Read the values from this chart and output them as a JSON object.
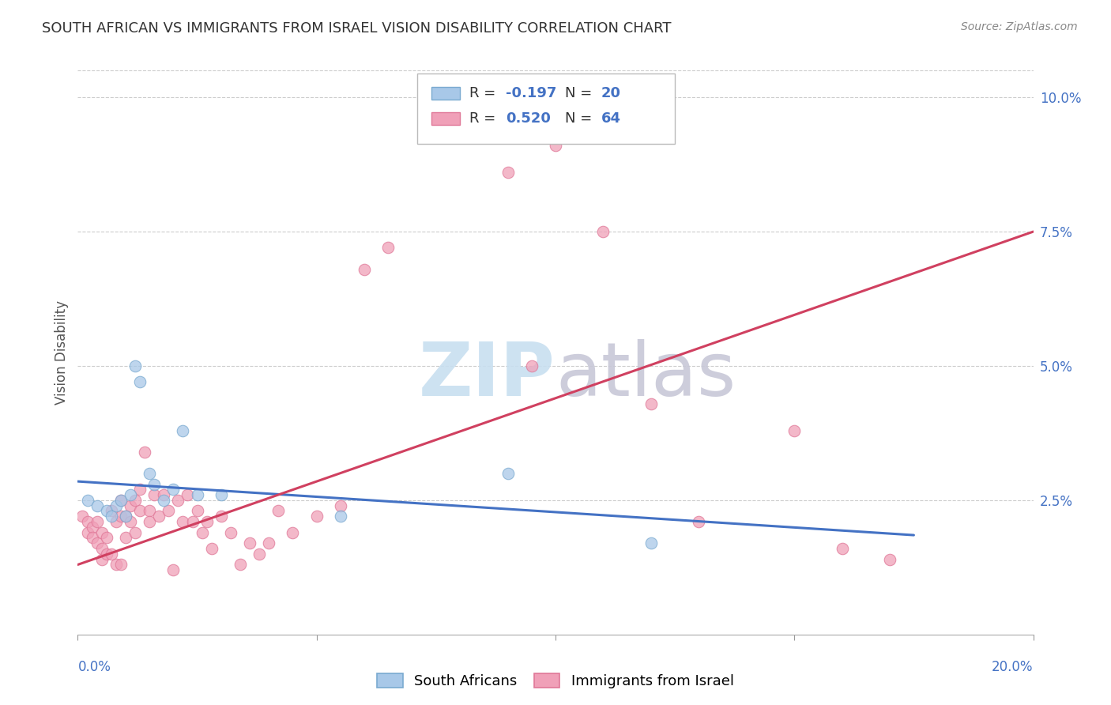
{
  "title": "SOUTH AFRICAN VS IMMIGRANTS FROM ISRAEL VISION DISABILITY CORRELATION CHART",
  "source": "Source: ZipAtlas.com",
  "ylabel": "Vision Disability",
  "xlim": [
    0.0,
    0.2
  ],
  "ylim": [
    0.0,
    0.105
  ],
  "yticks": [
    0.025,
    0.05,
    0.075,
    0.1
  ],
  "ytick_labels": [
    "2.5%",
    "5.0%",
    "7.5%",
    "10.0%"
  ],
  "xticks": [
    0.0,
    0.05,
    0.1,
    0.15,
    0.2
  ],
  "background_color": "#ffffff",
  "grid_color": "#cccccc",
  "blue_color": "#a8c8e8",
  "pink_color": "#f0a0b8",
  "blue_edge_color": "#7aaad0",
  "pink_edge_color": "#e07898",
  "blue_line_color": "#4472c4",
  "pink_line_color": "#d04060",
  "legend_r_blue": "-0.197",
  "legend_n_blue": "20",
  "legend_r_pink": "0.520",
  "legend_n_pink": "64",
  "blue_scatter_x": [
    0.002,
    0.004,
    0.006,
    0.007,
    0.008,
    0.009,
    0.01,
    0.011,
    0.012,
    0.013,
    0.015,
    0.016,
    0.018,
    0.02,
    0.022,
    0.025,
    0.03,
    0.055,
    0.09,
    0.12
  ],
  "blue_scatter_y": [
    0.025,
    0.024,
    0.023,
    0.022,
    0.024,
    0.025,
    0.022,
    0.026,
    0.05,
    0.047,
    0.03,
    0.028,
    0.025,
    0.027,
    0.038,
    0.026,
    0.026,
    0.022,
    0.03,
    0.017
  ],
  "pink_scatter_x": [
    0.001,
    0.002,
    0.002,
    0.003,
    0.003,
    0.004,
    0.004,
    0.005,
    0.005,
    0.005,
    0.006,
    0.006,
    0.007,
    0.007,
    0.008,
    0.008,
    0.009,
    0.009,
    0.009,
    0.01,
    0.01,
    0.011,
    0.011,
    0.012,
    0.012,
    0.013,
    0.013,
    0.014,
    0.015,
    0.015,
    0.016,
    0.017,
    0.018,
    0.019,
    0.02,
    0.021,
    0.022,
    0.023,
    0.024,
    0.025,
    0.026,
    0.027,
    0.028,
    0.03,
    0.032,
    0.034,
    0.036,
    0.038,
    0.04,
    0.042,
    0.045,
    0.05,
    0.055,
    0.06,
    0.065,
    0.09,
    0.095,
    0.1,
    0.11,
    0.12,
    0.13,
    0.15,
    0.16,
    0.17
  ],
  "pink_scatter_y": [
    0.022,
    0.021,
    0.019,
    0.02,
    0.018,
    0.021,
    0.017,
    0.019,
    0.016,
    0.014,
    0.018,
    0.015,
    0.023,
    0.015,
    0.021,
    0.013,
    0.025,
    0.022,
    0.013,
    0.022,
    0.018,
    0.024,
    0.021,
    0.025,
    0.019,
    0.023,
    0.027,
    0.034,
    0.023,
    0.021,
    0.026,
    0.022,
    0.026,
    0.023,
    0.012,
    0.025,
    0.021,
    0.026,
    0.021,
    0.023,
    0.019,
    0.021,
    0.016,
    0.022,
    0.019,
    0.013,
    0.017,
    0.015,
    0.017,
    0.023,
    0.019,
    0.022,
    0.024,
    0.068,
    0.072,
    0.086,
    0.05,
    0.091,
    0.075,
    0.043,
    0.021,
    0.038,
    0.016,
    0.014
  ],
  "blue_line_x": [
    0.0,
    0.175
  ],
  "blue_line_y": [
    0.0285,
    0.0185
  ],
  "pink_line_x": [
    0.0,
    0.2
  ],
  "pink_line_y": [
    0.013,
    0.075
  ],
  "watermark_zip": "ZIP",
  "watermark_atlas": "atlas",
  "watermark_color_zip": "#c8dff0",
  "watermark_color_atlas": "#c8c8d8",
  "watermark_fontsize": 68
}
